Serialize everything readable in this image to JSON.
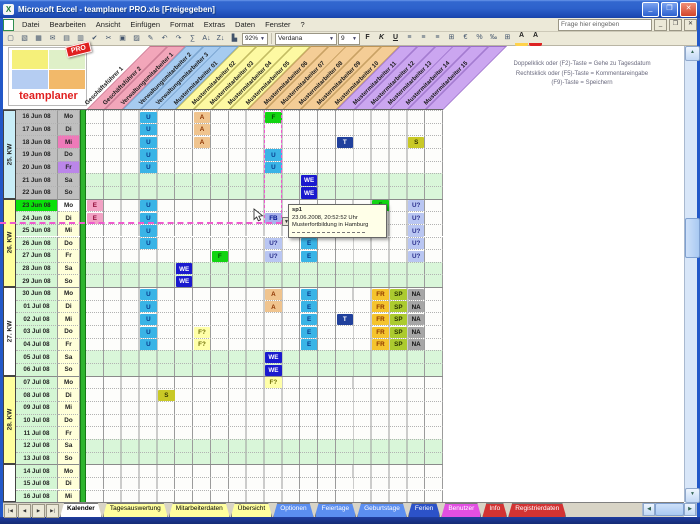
{
  "window": {
    "title": "Microsoft Excel - teamplaner PRO.xls [Freigegeben]",
    "app_icon": "X",
    "controls": {
      "minimize": "_",
      "maximize": "❐",
      "close": "✕"
    },
    "doc_controls": {
      "minimize": "_",
      "restore": "❐",
      "close": "✕"
    },
    "question_box": "Frage hier eingeben"
  },
  "menu": {
    "items": [
      "Datei",
      "Bearbeiten",
      "Ansicht",
      "Einfügen",
      "Format",
      "Extras",
      "Daten",
      "Fenster",
      "?"
    ]
  },
  "toolbar": {
    "standard_icons": [
      {
        "name": "new",
        "g": "▢"
      },
      {
        "name": "open",
        "g": "▧"
      },
      {
        "name": "save",
        "g": "▦"
      },
      {
        "name": "email",
        "g": "✉"
      },
      {
        "name": "print",
        "g": "▤"
      },
      {
        "name": "print-preview",
        "g": "▥"
      },
      {
        "name": "spelling",
        "g": "✔"
      },
      {
        "name": "cut",
        "g": "✂"
      },
      {
        "name": "copy",
        "g": "▣"
      },
      {
        "name": "paste",
        "g": "▨"
      },
      {
        "name": "format-painter",
        "g": "✎"
      },
      {
        "name": "undo",
        "g": "↶"
      },
      {
        "name": "redo",
        "g": "↷"
      },
      {
        "name": "autosum",
        "g": "∑"
      },
      {
        "name": "sort-ascending",
        "g": "A↓"
      },
      {
        "name": "sort-descending",
        "g": "Z↓"
      },
      {
        "name": "chart-wizard",
        "g": "▙"
      }
    ],
    "zoom_value": "92%",
    "font_name": "Verdana",
    "font_size": "9",
    "format_icons": [
      {
        "name": "bold",
        "g": "F"
      },
      {
        "name": "italic",
        "g": "K"
      },
      {
        "name": "underline",
        "g": "U"
      },
      {
        "name": "align-left",
        "g": "≡"
      },
      {
        "name": "align-center",
        "g": "≡"
      },
      {
        "name": "align-right",
        "g": "≡"
      },
      {
        "name": "merge-center",
        "g": "⊞"
      },
      {
        "name": "currency",
        "g": "€"
      },
      {
        "name": "percent",
        "g": "%"
      },
      {
        "name": "thousands",
        "g": "‰"
      },
      {
        "name": "borders",
        "g": "⊞"
      },
      {
        "name": "fill-color",
        "g": "A"
      },
      {
        "name": "font-color",
        "g": "A"
      }
    ]
  },
  "logo": {
    "brand": "teamplaner",
    "badge": "PRO"
  },
  "instructions": {
    "lines": [
      "Doppelklick oder (F2)-Taste = Gehe zu Tagesdatum",
      "Rechtsklick oder (F5)-Taste = Kommentareingabe",
      "(F9)-Taste = Speichern"
    ]
  },
  "tooltip": {
    "author": "sp1",
    "lines": [
      "23.06.2008, 20:52:52 Uhr",
      "Musterfortbildung in Hamburg"
    ]
  },
  "planner": {
    "groups": {
      "gf": {
        "bg": "#f2a6ba",
        "bd": "#c4758e"
      },
      "vw": {
        "bg": "#a6cbf0",
        "bd": "#6f9cc8"
      },
      "my": {
        "bg": "#fdf9a2",
        "bd": "#b5ad52"
      },
      "mo": {
        "bg": "#f4cd96",
        "bd": "#bd9556"
      },
      "mp": {
        "bg": "#cba6f0",
        "bd": "#9a6fc8"
      }
    },
    "columns": [
      {
        "label": "Geschäftsführer 1",
        "g": "gf"
      },
      {
        "label": "Geschäftsführer 2",
        "g": "gf"
      },
      {
        "label": "Verwaltungsmitarbeiter 1",
        "g": "vw"
      },
      {
        "label": "Verwaltungsmitarbeiter 2",
        "g": "vw"
      },
      {
        "label": "Verwaltungsmitarbeiter 3",
        "g": "vw"
      },
      {
        "label": "Mustermitarbeiter 01",
        "g": "my"
      },
      {
        "label": "Mustermitarbeiter 02",
        "g": "my"
      },
      {
        "label": "Mustermitarbeiter 03",
        "g": "my"
      },
      {
        "label": "Mustermitarbeiter 04",
        "g": "my"
      },
      {
        "label": "Mustermitarbeiter 05",
        "g": "mo"
      },
      {
        "label": "Mustermitarbeiter 06",
        "g": "mo"
      },
      {
        "label": "Mustermitarbeiter 07",
        "g": "mo"
      },
      {
        "label": "Mustermitarbeiter 08",
        "g": "mo"
      },
      {
        "label": "Mustermitarbeiter 09",
        "g": "mo"
      },
      {
        "label": "Mustermitarbeiter 10",
        "g": "mp"
      },
      {
        "label": "Mustermitarbeiter 11",
        "g": "mp"
      },
      {
        "label": "Mustermitarbeiter 12",
        "g": "mp"
      },
      {
        "label": "Mustermitarbeiter 13",
        "g": "mp"
      },
      {
        "label": "Mustermitarbeiter 14",
        "g": "mp"
      },
      {
        "label": "Mustermitarbeiter 15",
        "g": "mp"
      }
    ],
    "weeks": [
      {
        "label": "25. KW",
        "bg": "#c9eef8",
        "start": 0,
        "rows": 7
      },
      {
        "label": "26. KW",
        "bg": "#ffff9e",
        "start": 7,
        "rows": 7
      },
      {
        "label": "27. KW",
        "bg": "#ffffff",
        "start": 14,
        "rows": 7
      },
      {
        "label": "28. KW",
        "bg": "#ffff9e",
        "start": 21,
        "rows": 7
      },
      {
        "label": "",
        "bg": "#ffffff",
        "start": 28,
        "rows": 3
      }
    ],
    "row_colors": {
      "past_date": "#bfbfbf",
      "today_date": "#0ae00a",
      "future_date": "#d4f6d4",
      "past_day": "#bfbfbf",
      "today_day": "#ffffff",
      "future_day": "#ffffd9",
      "weekend_strip": "#d9f6d9",
      "weekday_strip": "#fdfdfb"
    },
    "chip_styles": {
      "U": {
        "bg": "#3ab4e6",
        "fg": "#063a8c"
      },
      "E": {
        "bg": "#3ab4e6",
        "fg": "#063a8c"
      },
      "EP": {
        "bg": "#f2a2c4",
        "fg": "#8c0633"
      },
      "A": {
        "bg": "#f0c48e",
        "fg": "#8c3300"
      },
      "F": {
        "bg": "#12d412",
        "fg": "#054d05"
      },
      "F?": {
        "bg": "#ffffa8",
        "fg": "#6b6b00"
      },
      "FB": {
        "bg": "#a9b2ec",
        "fg": "#00128c"
      },
      "U?": {
        "bg": "#b9c6f2",
        "fg": "#2a2f8c"
      },
      "WE": {
        "bg": "#1a1ace",
        "fg": "#ffffff"
      },
      "T": {
        "bg": "#20409c",
        "fg": "#ffffff"
      },
      "S": {
        "bg": "#c9c926",
        "fg": "#333300"
      },
      "FR": {
        "bg": "#f5c42e",
        "fg": "#8c3300"
      },
      "SP": {
        "bg": "#accb2f",
        "fg": "#2a3300"
      },
      "NA": {
        "bg": "#a6a6a6",
        "fg": "#111111"
      }
    },
    "rows": [
      {
        "date": "16 Jun 08",
        "day": "Mo",
        "k": "p",
        "cells": [
          {
            "c": 3,
            "t": "U"
          },
          {
            "c": 6,
            "t": "A"
          },
          {
            "c": 10,
            "t": "F"
          }
        ]
      },
      {
        "date": "17 Jun 08",
        "day": "Di",
        "k": "p",
        "cells": [
          {
            "c": 3,
            "t": "U"
          },
          {
            "c": 6,
            "t": "A"
          }
        ]
      },
      {
        "date": "18 Jun 08",
        "day": "Mi",
        "k": "p",
        "dc": "#ee7ab9",
        "cells": [
          {
            "c": 3,
            "t": "U"
          },
          {
            "c": 6,
            "t": "A"
          },
          {
            "c": 14,
            "t": "T"
          },
          {
            "c": 18,
            "t": "S"
          }
        ]
      },
      {
        "date": "19 Jun 08",
        "day": "Do",
        "k": "p",
        "cells": [
          {
            "c": 3,
            "t": "U"
          },
          {
            "c": 10,
            "t": "U"
          }
        ]
      },
      {
        "date": "20 Jun 08",
        "day": "Fr",
        "k": "p",
        "dc": "#bb86e9",
        "cells": [
          {
            "c": 3,
            "t": "U"
          },
          {
            "c": 10,
            "t": "U"
          }
        ]
      },
      {
        "date": "21 Jun 08",
        "day": "Sa",
        "k": "p",
        "wk": true,
        "cells": [
          {
            "c": 12,
            "t": "WE"
          }
        ]
      },
      {
        "date": "22 Jun 08",
        "day": "So",
        "k": "p",
        "wk": true,
        "cells": [
          {
            "c": 12,
            "t": "WE"
          }
        ]
      },
      {
        "date": "23 Jun 08",
        "day": "Mo",
        "k": "t",
        "cells": [
          {
            "c": 0,
            "t": "E",
            "s": "EP"
          },
          {
            "c": 3,
            "t": "U"
          },
          {
            "c": 16,
            "t": "F"
          },
          {
            "c": 18,
            "t": "U?"
          }
        ]
      },
      {
        "date": "24 Jun 08",
        "day": "Di",
        "k": "f",
        "cells": [
          {
            "c": 0,
            "t": "E",
            "s": "EP"
          },
          {
            "c": 3,
            "t": "U"
          },
          {
            "c": 10,
            "t": "FB"
          },
          {
            "c": 18,
            "t": "U?"
          }
        ]
      },
      {
        "date": "25 Jun 08",
        "day": "Mi",
        "k": "f",
        "cells": [
          {
            "c": 3,
            "t": "U"
          },
          {
            "c": 18,
            "t": "U?"
          }
        ]
      },
      {
        "date": "26 Jun 08",
        "day": "Do",
        "k": "f",
        "cells": [
          {
            "c": 3,
            "t": "U"
          },
          {
            "c": 10,
            "t": "U?"
          },
          {
            "c": 12,
            "t": "E"
          },
          {
            "c": 18,
            "t": "U?"
          }
        ]
      },
      {
        "date": "27 Jun 08",
        "day": "Fr",
        "k": "f",
        "cells": [
          {
            "c": 7,
            "t": "F"
          },
          {
            "c": 10,
            "t": "U?"
          },
          {
            "c": 12,
            "t": "E"
          },
          {
            "c": 18,
            "t": "U?"
          }
        ]
      },
      {
        "date": "28 Jun 08",
        "day": "Sa",
        "k": "f",
        "wk": true,
        "cells": [
          {
            "c": 5,
            "t": "WE"
          }
        ]
      },
      {
        "date": "29 Jun 08",
        "day": "So",
        "k": "f",
        "wk": true,
        "cells": [
          {
            "c": 5,
            "t": "WE"
          }
        ]
      },
      {
        "date": "30 Jun 08",
        "day": "Mo",
        "k": "f",
        "cells": [
          {
            "c": 3,
            "t": "U"
          },
          {
            "c": 10,
            "t": "A"
          },
          {
            "c": 12,
            "t": "E"
          },
          {
            "c": 16,
            "t": "FR"
          },
          {
            "c": 17,
            "t": "SP"
          },
          {
            "c": 18,
            "t": "NA"
          }
        ]
      },
      {
        "date": "01 Jul 08",
        "day": "Di",
        "k": "f",
        "cells": [
          {
            "c": 3,
            "t": "U"
          },
          {
            "c": 10,
            "t": "A"
          },
          {
            "c": 12,
            "t": "E"
          },
          {
            "c": 16,
            "t": "FR"
          },
          {
            "c": 17,
            "t": "SP"
          },
          {
            "c": 18,
            "t": "NA"
          }
        ]
      },
      {
        "date": "02 Jul 08",
        "day": "Mi",
        "k": "f",
        "cells": [
          {
            "c": 3,
            "t": "U"
          },
          {
            "c": 12,
            "t": "E"
          },
          {
            "c": 14,
            "t": "T"
          },
          {
            "c": 16,
            "t": "FR"
          },
          {
            "c": 17,
            "t": "SP"
          },
          {
            "c": 18,
            "t": "NA"
          }
        ]
      },
      {
        "date": "03 Jul 08",
        "day": "Do",
        "k": "f",
        "cells": [
          {
            "c": 3,
            "t": "U"
          },
          {
            "c": 6,
            "t": "F?"
          },
          {
            "c": 12,
            "t": "E"
          },
          {
            "c": 16,
            "t": "FR"
          },
          {
            "c": 17,
            "t": "SP"
          },
          {
            "c": 18,
            "t": "NA"
          }
        ]
      },
      {
        "date": "04 Jul 08",
        "day": "Fr",
        "k": "f",
        "cells": [
          {
            "c": 3,
            "t": "U"
          },
          {
            "c": 6,
            "t": "F?"
          },
          {
            "c": 12,
            "t": "E"
          },
          {
            "c": 16,
            "t": "FR"
          },
          {
            "c": 17,
            "t": "SP"
          },
          {
            "c": 18,
            "t": "NA"
          }
        ]
      },
      {
        "date": "05 Jul 08",
        "day": "Sa",
        "k": "f",
        "wk": true,
        "cells": [
          {
            "c": 10,
            "t": "WE"
          }
        ]
      },
      {
        "date": "06 Jul 08",
        "day": "So",
        "k": "f",
        "wk": true,
        "cells": [
          {
            "c": 10,
            "t": "WE"
          }
        ]
      },
      {
        "date": "07 Jul 08",
        "day": "Mo",
        "k": "f",
        "cells": [
          {
            "c": 10,
            "t": "F?"
          }
        ]
      },
      {
        "date": "08 Jul 08",
        "day": "Di",
        "k": "f",
        "cells": [
          {
            "c": 4,
            "t": "S"
          }
        ]
      },
      {
        "date": "09 Jul 08",
        "day": "Mi",
        "k": "f",
        "cells": []
      },
      {
        "date": "10 Jul 08",
        "day": "Do",
        "k": "f",
        "cells": []
      },
      {
        "date": "11 Jul 08",
        "day": "Fr",
        "k": "f",
        "cells": []
      },
      {
        "date": "12 Jul 08",
        "day": "Sa",
        "k": "f",
        "wk": true,
        "cells": []
      },
      {
        "date": "13 Jul 08",
        "day": "So",
        "k": "f",
        "wk": true,
        "cells": []
      },
      {
        "date": "14 Jul 08",
        "day": "Mo",
        "k": "f",
        "cells": []
      },
      {
        "date": "15 Jul 08",
        "day": "Di",
        "k": "f",
        "cells": []
      },
      {
        "date": "16 Jul 08",
        "day": "Mi",
        "k": "f",
        "cells": []
      }
    ]
  },
  "tabs": {
    "nav": [
      "|◀",
      "◀",
      "▶",
      "▶|"
    ],
    "items": [
      {
        "label": "Kalender",
        "bg": "#ffffff",
        "fg": "#000000",
        "active": true
      },
      {
        "label": "Tagesauswertung",
        "bg": "#ffff9e",
        "fg": "#000000"
      },
      {
        "label": "Mitarbeiterdaten",
        "bg": "#ffff9e",
        "fg": "#000000"
      },
      {
        "label": "Übersicht",
        "bg": "#ffff9e",
        "fg": "#000000"
      },
      {
        "label": "Optionen",
        "bg": "#5b8ef0",
        "fg": "#ffffff"
      },
      {
        "label": "Feiertage",
        "bg": "#5b8ef0",
        "fg": "#ffffff"
      },
      {
        "label": "Geburtstage",
        "bg": "#5b8ef0",
        "fg": "#ffffff"
      },
      {
        "label": "Ferien",
        "bg": "#2c52c8",
        "fg": "#ffffff"
      },
      {
        "label": "Benutzer",
        "bg": "#e24fe2",
        "fg": "#ffffff"
      },
      {
        "label": "Info",
        "bg": "#d23333",
        "fg": "#ffffff"
      },
      {
        "label": "Registrierdaten",
        "bg": "#d23333",
        "fg": "#ffffff"
      }
    ]
  }
}
